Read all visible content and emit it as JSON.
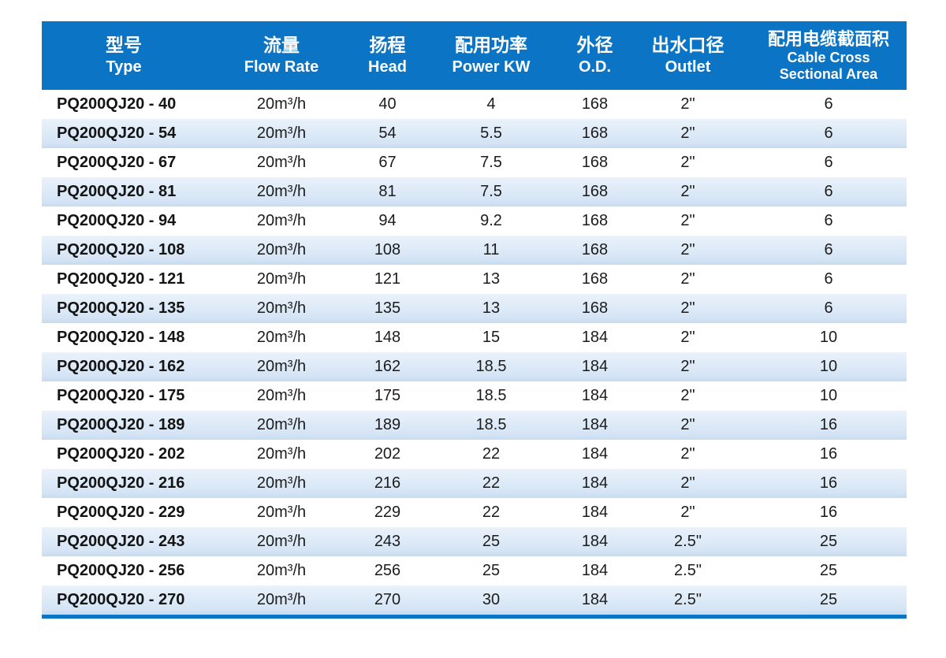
{
  "colors": {
    "header_bg": "#0b74c5",
    "stripe_bg": "#dde9f6",
    "bottom_rule": "#0b74c5",
    "header_text": "#ffffff",
    "body_text": "#1c1c1c"
  },
  "table": {
    "columns": [
      {
        "zh": "型号",
        "en": "Type"
      },
      {
        "zh": "流量",
        "en": "Flow Rate"
      },
      {
        "zh": "扬程",
        "en": "Head"
      },
      {
        "zh": "配用功率",
        "en": "Power KW"
      },
      {
        "zh": "外径",
        "en": "O.D."
      },
      {
        "zh": "出水口径",
        "en": "Outlet"
      },
      {
        "zh": "配用电缆截面积",
        "en": "Cable Cross\nSectional Area"
      }
    ],
    "rows": [
      [
        "PQ200QJ20 - 40",
        "20m³/h",
        "40",
        "4",
        "168",
        "2\"",
        "6"
      ],
      [
        "PQ200QJ20 - 54",
        "20m³/h",
        "54",
        "5.5",
        "168",
        "2\"",
        "6"
      ],
      [
        "PQ200QJ20 - 67",
        "20m³/h",
        "67",
        "7.5",
        "168",
        "2\"",
        "6"
      ],
      [
        "PQ200QJ20 - 81",
        "20m³/h",
        "81",
        "7.5",
        "168",
        "2\"",
        "6"
      ],
      [
        "PQ200QJ20 - 94",
        "20m³/h",
        "94",
        "9.2",
        "168",
        "2\"",
        "6"
      ],
      [
        "PQ200QJ20 - 108",
        "20m³/h",
        "108",
        "11",
        "168",
        "2\"",
        "6"
      ],
      [
        "PQ200QJ20 - 121",
        "20m³/h",
        "121",
        "13",
        "168",
        "2\"",
        "6"
      ],
      [
        "PQ200QJ20 - 135",
        "20m³/h",
        "135",
        "13",
        "168",
        "2\"",
        "6"
      ],
      [
        "PQ200QJ20 - 148",
        "20m³/h",
        "148",
        "15",
        "184",
        "2\"",
        "10"
      ],
      [
        "PQ200QJ20 - 162",
        "20m³/h",
        "162",
        "18.5",
        "184",
        "2\"",
        "10"
      ],
      [
        "PQ200QJ20 - 175",
        "20m³/h",
        "175",
        "18.5",
        "184",
        "2\"",
        "10"
      ],
      [
        "PQ200QJ20 - 189",
        "20m³/h",
        "189",
        "18.5",
        "184",
        "2\"",
        "16"
      ],
      [
        "PQ200QJ20 - 202",
        "20m³/h",
        "202",
        "22",
        "184",
        "2\"",
        "16"
      ],
      [
        "PQ200QJ20 - 216",
        "20m³/h",
        "216",
        "22",
        "184",
        "2\"",
        "16"
      ],
      [
        "PQ200QJ20 - 229",
        "20m³/h",
        "229",
        "22",
        "184",
        "2\"",
        "16"
      ],
      [
        "PQ200QJ20 - 243",
        "20m³/h",
        "243",
        "25",
        "184",
        "2.5\"",
        "25"
      ],
      [
        "PQ200QJ20 - 256",
        "20m³/h",
        "256",
        "25",
        "184",
        "2.5\"",
        "25"
      ],
      [
        "PQ200QJ20 - 270",
        "20m³/h",
        "270",
        "30",
        "184",
        "2.5\"",
        "25"
      ]
    ]
  }
}
